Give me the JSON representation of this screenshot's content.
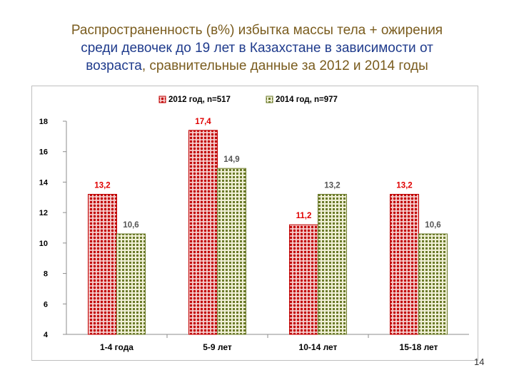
{
  "title": {
    "part1": "Распространенность (в%) избытка массы тела + ожирения",
    "part2": "среди девочек до 19 лет",
    "part3": " в Казахстане в зависимости от",
    "part4": "возраста",
    "part5": ", сравнительные данные за 2012 и 2014 годы",
    "color_main": "#7a5c1e",
    "color_accent": "#1f3b8c"
  },
  "slide_number": "14",
  "chart_data": {
    "type": "bar",
    "title": "",
    "xlabel": "",
    "ylabel": "",
    "categories": [
      "1-4 года",
      "5-9 лет",
      "10-14 лет",
      "15-18 лет"
    ],
    "series": [
      {
        "name": "2012 год, n=517",
        "values": [
          13.2,
          17.4,
          11.2,
          13.2
        ],
        "labels": [
          "13,2",
          "17,4",
          "11,2",
          "13,2"
        ],
        "color": "#c00000",
        "label_color": "#e00000"
      },
      {
        "name": "2014 год, n=977",
        "values": [
          10.6,
          14.9,
          13.2,
          10.6
        ],
        "labels": [
          "10,6",
          "14,9",
          "13,2",
          "10,6"
        ],
        "color": "#6b7a2a",
        "label_color": "#555555"
      }
    ],
    "ylim": [
      4,
      18
    ],
    "yticks": [
      "4",
      "6",
      "8",
      "10",
      "12",
      "14",
      "16",
      "18"
    ],
    "grid": false,
    "legend_position": "top"
  }
}
